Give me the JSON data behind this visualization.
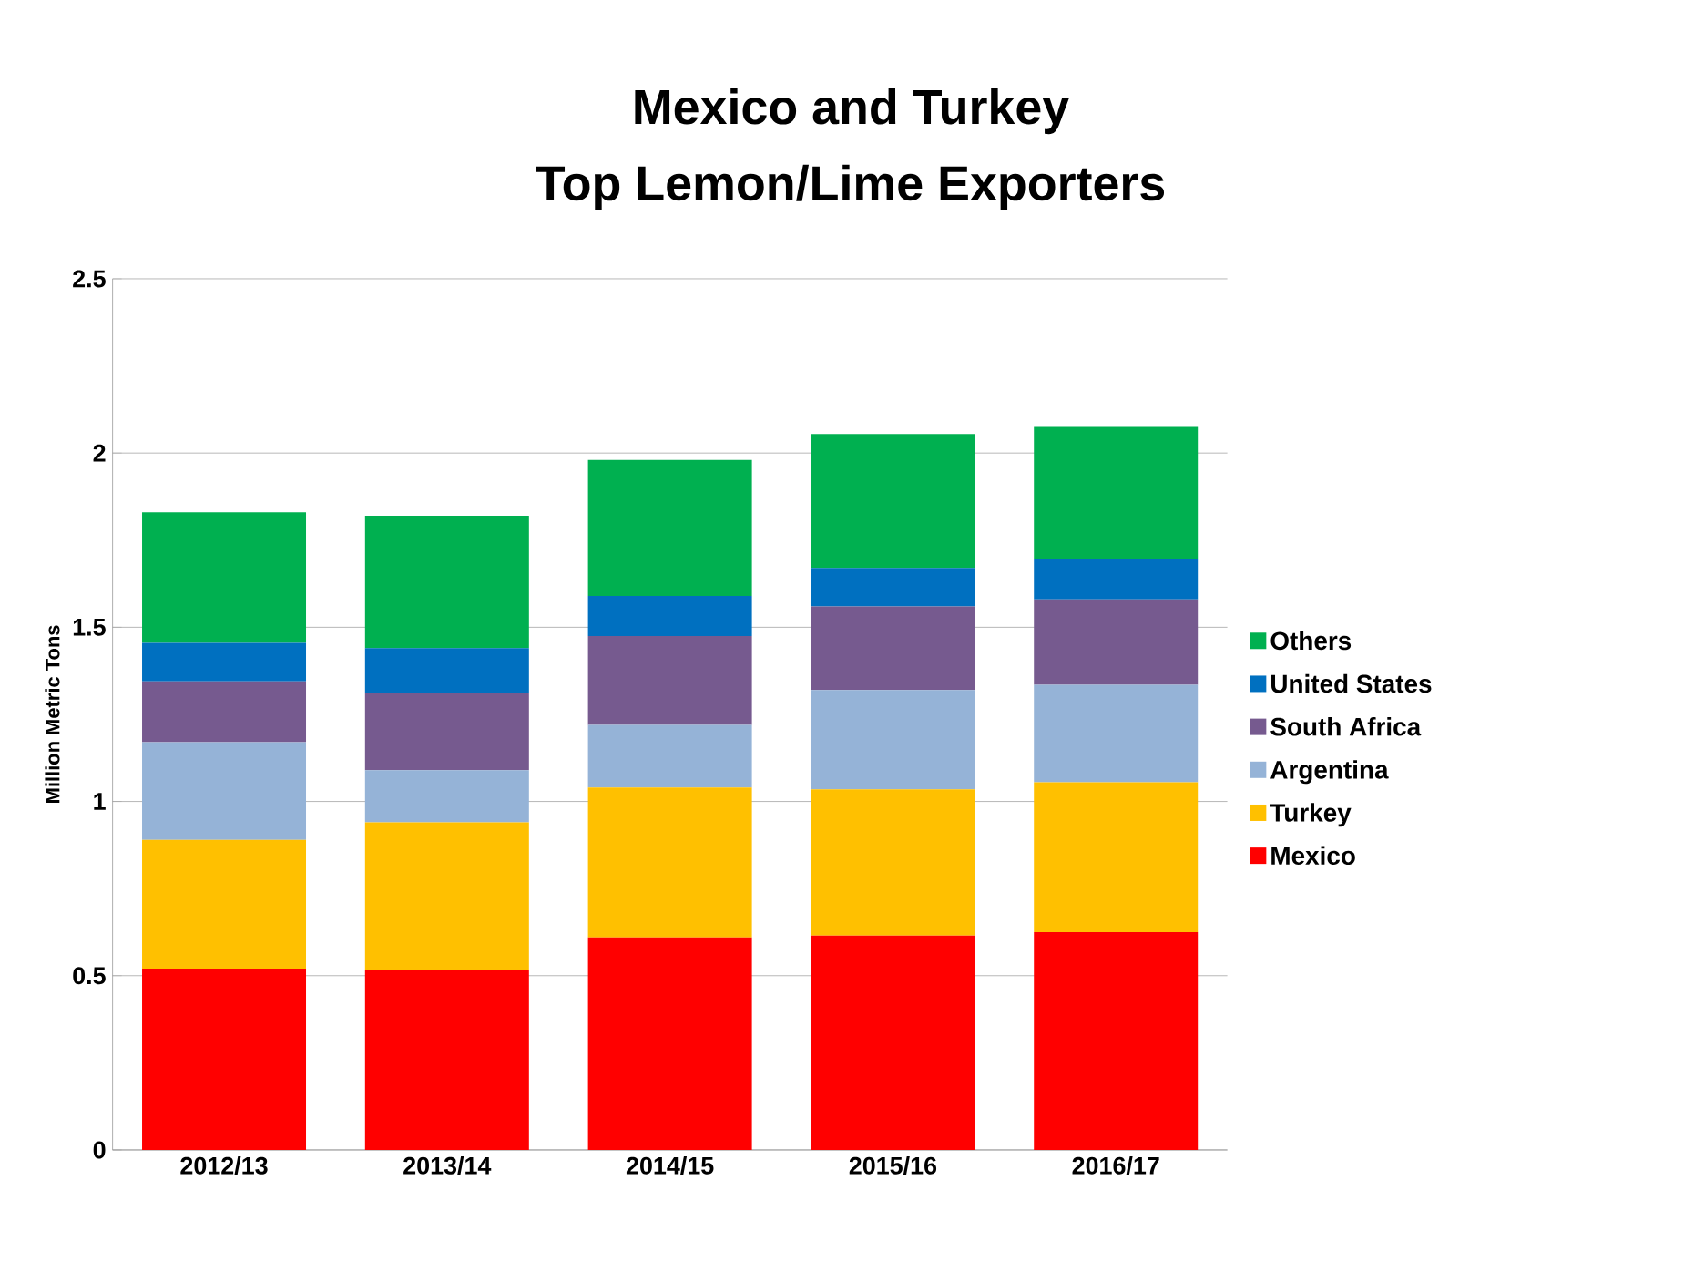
{
  "chart_data": {
    "type": "bar",
    "stacked": true,
    "title": "Mexico and Turkey\nTop Lemon/Lime Exporters",
    "ylabel": "Million Metric Tons",
    "categories": [
      "2012/13",
      "2013/14",
      "2014/15",
      "2015/16",
      "2016/17"
    ],
    "series": [
      {
        "name": "Mexico",
        "color": "#ff0000",
        "values": [
          0.52,
          0.515,
          0.61,
          0.615,
          0.625
        ]
      },
      {
        "name": "Turkey",
        "color": "#ffc000",
        "values": [
          0.37,
          0.425,
          0.43,
          0.42,
          0.43
        ]
      },
      {
        "name": "Argentina",
        "color": "#95b3d7",
        "values": [
          0.28,
          0.15,
          0.18,
          0.285,
          0.28
        ]
      },
      {
        "name": "South Africa",
        "color": "#765a8f",
        "values": [
          0.175,
          0.22,
          0.255,
          0.24,
          0.245
        ]
      },
      {
        "name": "United States",
        "color": "#0070c0",
        "values": [
          0.11,
          0.13,
          0.115,
          0.11,
          0.115
        ]
      },
      {
        "name": "Others",
        "color": "#00b050",
        "values": [
          0.375,
          0.38,
          0.39,
          0.385,
          0.38
        ]
      }
    ],
    "ylim": [
      0,
      2.5
    ],
    "yticks": [
      0,
      0.5,
      1,
      1.5,
      2,
      2.5
    ],
    "grid": "y",
    "legend": "right"
  }
}
